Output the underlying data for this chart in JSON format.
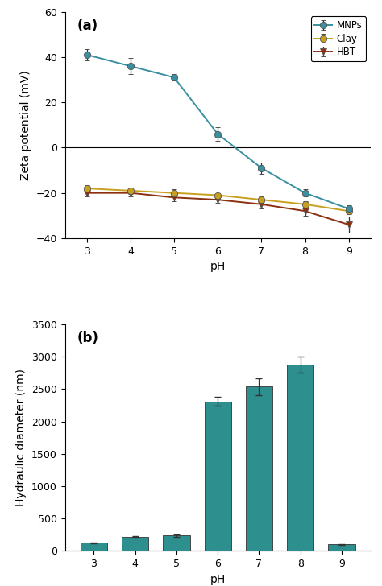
{
  "ph": [
    3,
    4,
    5,
    6,
    7,
    8,
    9
  ],
  "mnps_y": [
    41,
    36,
    31,
    6,
    -9,
    -20,
    -27
  ],
  "mnps_err": [
    2.5,
    3.5,
    1.5,
    3.0,
    2.5,
    1.5,
    1.5
  ],
  "clay_y": [
    -18,
    -19,
    -20,
    -21,
    -23,
    -25,
    -28
  ],
  "clay_err": [
    1.5,
    1.5,
    1.5,
    1.5,
    1.5,
    1.5,
    1.5
  ],
  "hbt_y": [
    -20,
    -20,
    -22,
    -23,
    -25,
    -28,
    -34
  ],
  "hbt_err": [
    1.5,
    1.5,
    1.5,
    1.5,
    2.0,
    2.0,
    3.5
  ],
  "mnps_color": "#3a8fa0",
  "clay_color": "#c8a020",
  "hbt_color": "#8b3010",
  "bar_values": [
    125,
    220,
    235,
    2310,
    2540,
    2880,
    100
  ],
  "bar_errors": [
    8,
    10,
    18,
    65,
    130,
    125,
    8
  ],
  "bar_color": "#2e8f8f",
  "bar_ph": [
    3,
    4,
    5,
    6,
    7,
    8,
    9
  ],
  "panel_a_ylabel": "Zeta potential (mV)",
  "panel_a_xlabel": "pH",
  "panel_b_ylabel": "Hydraulic diameter (nm)",
  "panel_b_xlabel": "pH",
  "panel_a_ylim": [
    -40,
    60
  ],
  "panel_b_ylim": [
    0,
    3500
  ],
  "panel_a_yticks": [
    -40,
    -20,
    0,
    20,
    40,
    60
  ],
  "panel_b_yticks": [
    0,
    500,
    1000,
    1500,
    2000,
    2500,
    3000,
    3500
  ],
  "label_a": "(a)",
  "label_b": "(b)",
  "bg_color": "#ffffff"
}
